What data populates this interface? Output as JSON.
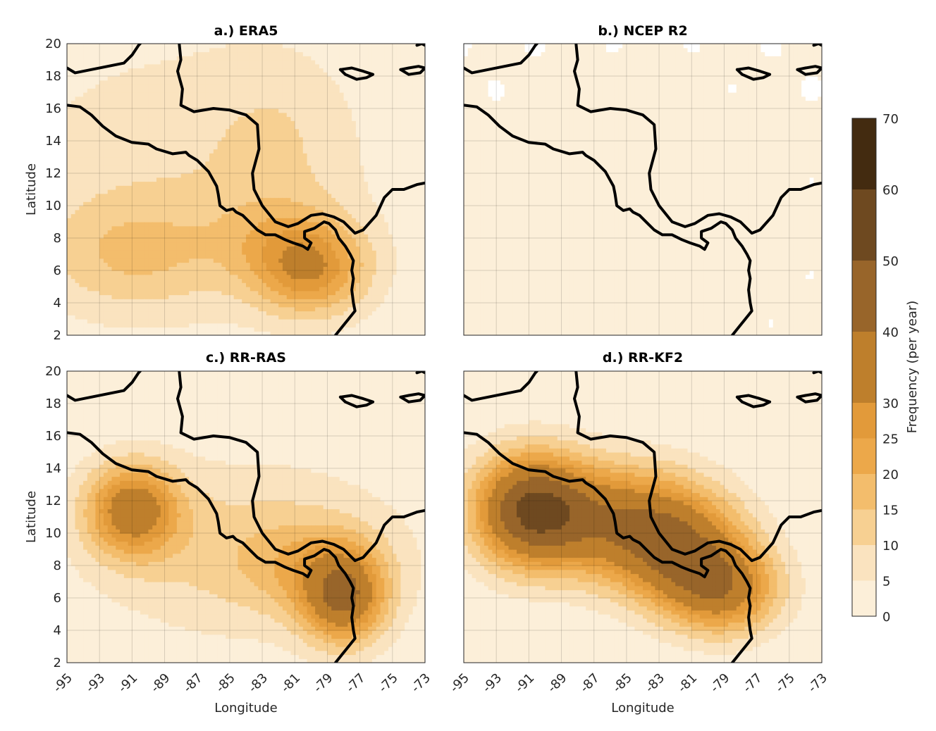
{
  "chart_data": {
    "type": "heatmap",
    "panels": [
      {
        "id": "a",
        "title": "a.) ERA5",
        "blobs": [
          {
            "lon": -88,
            "lat": 12,
            "sx": 9,
            "sy": 7,
            "amp": 8
          },
          {
            "lon": -91,
            "lat": 7,
            "sx": 4,
            "sy": 2.5,
            "amp": 11
          },
          {
            "lon": -80,
            "lat": 6,
            "sx": 2.5,
            "sy": 2,
            "amp": 24
          },
          {
            "lon": -82,
            "lat": 8,
            "sx": 3,
            "sy": 2,
            "amp": 8
          },
          {
            "lon": -82,
            "lat": 14,
            "sx": 3,
            "sy": 4,
            "amp": 5
          }
        ]
      },
      {
        "id": "b",
        "title": "b.) NCEP R2",
        "blobs": [
          {
            "lon": -84,
            "lat": 9,
            "sx": 14,
            "sy": 12,
            "amp": 2.5
          }
        ]
      },
      {
        "id": "c",
        "title": "c.) RR-RAS",
        "blobs": [
          {
            "lon": -91,
            "lat": 11.5,
            "sx": 2,
            "sy": 2,
            "amp": 32
          },
          {
            "lon": -84,
            "lat": 9,
            "sx": 7,
            "sy": 4,
            "amp": 12
          },
          {
            "lon": -78,
            "lat": 6,
            "sx": 1.8,
            "sy": 2,
            "amp": 34
          },
          {
            "lon": -80,
            "lat": 8,
            "sx": 3,
            "sy": 2,
            "amp": 10
          }
        ]
      },
      {
        "id": "d",
        "title": "d.) RR-KF2",
        "blobs": [
          {
            "lon": -91,
            "lat": 11.5,
            "sx": 2.5,
            "sy": 2.5,
            "amp": 42
          },
          {
            "lon": -86,
            "lat": 11,
            "sx": 4,
            "sy": 2.5,
            "amp": 28
          },
          {
            "lon": -82,
            "lat": 9,
            "sx": 3,
            "sy": 2.5,
            "amp": 30
          },
          {
            "lon": -79,
            "lat": 6.5,
            "sx": 2.5,
            "sy": 2,
            "amp": 30
          }
        ]
      }
    ],
    "x_ticks": [
      -95,
      -93,
      -91,
      -89,
      -87,
      -85,
      -83,
      -81,
      -79,
      -77,
      -75,
      -73
    ],
    "y_ticks": [
      2,
      4,
      6,
      8,
      10,
      12,
      14,
      16,
      18,
      20
    ],
    "xlim": [
      -95,
      -73
    ],
    "ylim": [
      2,
      20
    ],
    "xlabel": "Longitude",
    "ylabel": "Latitude",
    "colorbar": {
      "label": "Frequency (per year)",
      "levels": [
        0,
        5,
        10,
        15,
        20,
        25,
        30,
        40,
        50,
        60,
        70
      ],
      "colors": [
        "#fcefd9",
        "#fae3bf",
        "#f7d092",
        "#f3bd6c",
        "#eca84a",
        "#e29a3a",
        "#be7f2c",
        "#98652a",
        "#6e4920",
        "#432b10"
      ]
    },
    "coastline": [
      [
        [
          -95,
          18.5
        ],
        [
          -94.5,
          18.2
        ],
        [
          -93.5,
          18.4
        ],
        [
          -92.5,
          18.6
        ],
        [
          -91.5,
          18.8
        ],
        [
          -91,
          19.3
        ],
        [
          -90.6,
          19.9
        ],
        [
          -90.5,
          20
        ]
      ],
      [
        [
          -88.1,
          20
        ],
        [
          -88,
          19
        ],
        [
          -88.2,
          18.3
        ],
        [
          -87.9,
          17.2
        ],
        [
          -88,
          16.2
        ],
        [
          -87.2,
          15.8
        ],
        [
          -86,
          16
        ],
        [
          -85,
          15.9
        ],
        [
          -84,
          15.6
        ],
        [
          -83.3,
          15
        ],
        [
          -83.2,
          13.5
        ],
        [
          -83.6,
          12
        ],
        [
          -83.5,
          11
        ],
        [
          -83,
          10
        ],
        [
          -82.2,
          9
        ],
        [
          -81.4,
          8.7
        ],
        [
          -80.8,
          8.9
        ],
        [
          -80,
          9.4
        ],
        [
          -79.3,
          9.5
        ],
        [
          -78.6,
          9.3
        ],
        [
          -78,
          9
        ],
        [
          -77.3,
          8.3
        ],
        [
          -76.8,
          8.5
        ],
        [
          -76,
          9.4
        ],
        [
          -75.5,
          10.5
        ],
        [
          -75,
          11
        ],
        [
          -74.3,
          11
        ],
        [
          -73.5,
          11.3
        ],
        [
          -73,
          11.4
        ]
      ],
      [
        [
          -95,
          16.2
        ],
        [
          -94.2,
          16.1
        ],
        [
          -93.5,
          15.6
        ],
        [
          -92.8,
          14.9
        ],
        [
          -92,
          14.3
        ],
        [
          -91,
          13.9
        ],
        [
          -90,
          13.8
        ],
        [
          -89.5,
          13.5
        ],
        [
          -88.5,
          13.2
        ],
        [
          -87.7,
          13.3
        ],
        [
          -87.5,
          13.1
        ],
        [
          -87,
          12.8
        ],
        [
          -86.3,
          12.1
        ],
        [
          -85.8,
          11.2
        ],
        [
          -85.7,
          10.7
        ],
        [
          -85.6,
          10
        ],
        [
          -85.2,
          9.7
        ],
        [
          -84.8,
          9.8
        ],
        [
          -84.6,
          9.6
        ],
        [
          -84.2,
          9.4
        ],
        [
          -83.7,
          8.9
        ],
        [
          -83.3,
          8.5
        ],
        [
          -82.8,
          8.2
        ],
        [
          -82.2,
          8.2
        ],
        [
          -81.6,
          7.9
        ],
        [
          -81.1,
          7.7
        ],
        [
          -80.5,
          7.5
        ],
        [
          -80.2,
          7.3
        ],
        [
          -80,
          7.7
        ],
        [
          -80.4,
          8
        ],
        [
          -80.4,
          8.4
        ],
        [
          -79.8,
          8.6
        ],
        [
          -79.2,
          9
        ],
        [
          -78.9,
          8.9
        ],
        [
          -78.5,
          8.5
        ],
        [
          -78.3,
          8
        ],
        [
          -77.9,
          7.5
        ],
        [
          -77.6,
          7
        ],
        [
          -77.4,
          6.6
        ],
        [
          -77.5,
          6
        ],
        [
          -77.4,
          5.5
        ],
        [
          -77.5,
          4.8
        ],
        [
          -77.4,
          4
        ],
        [
          -77.3,
          3.5
        ],
        [
          -77.7,
          3
        ],
        [
          -78.1,
          2.5
        ],
        [
          -78.5,
          2
        ]
      ],
      [
        [
          -78.2,
          18.4
        ],
        [
          -77.5,
          18.5
        ],
        [
          -76.8,
          18.3
        ],
        [
          -76.2,
          18.1
        ],
        [
          -76.6,
          17.9
        ],
        [
          -77.2,
          17.8
        ],
        [
          -77.9,
          18.1
        ],
        [
          -78.2,
          18.4
        ]
      ],
      [
        [
          -74.5,
          18.4
        ],
        [
          -74,
          18.5
        ],
        [
          -73.4,
          18.6
        ],
        [
          -73,
          18.5
        ],
        [
          -73.3,
          18.2
        ],
        [
          -74,
          18.1
        ],
        [
          -74.5,
          18.4
        ]
      ],
      [
        [
          -73.5,
          19.9
        ],
        [
          -73.2,
          20
        ],
        [
          -73,
          19.9
        ]
      ]
    ]
  }
}
